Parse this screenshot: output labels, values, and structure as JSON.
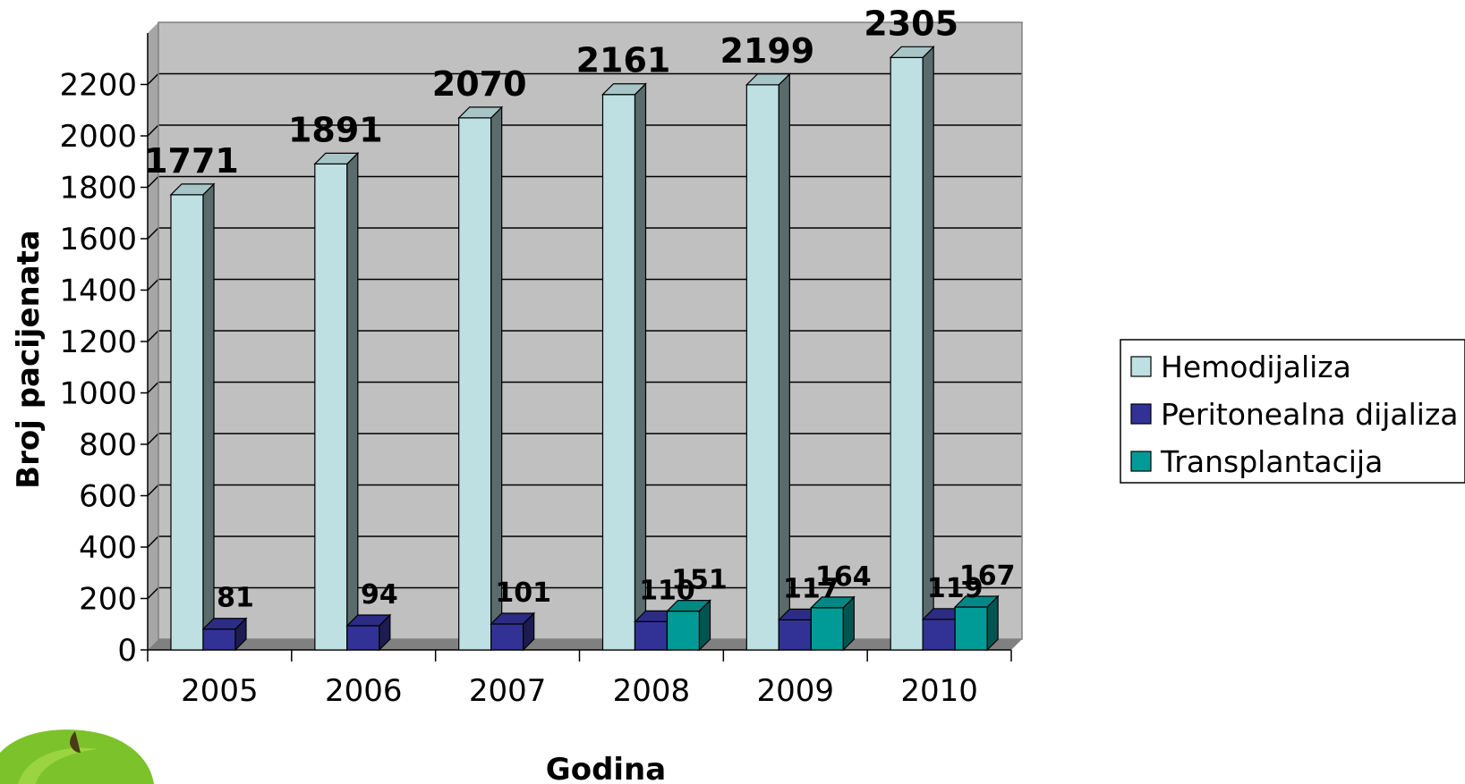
{
  "chart_data": {
    "type": "bar",
    "categories": [
      "2005",
      "2006",
      "2007",
      "2008",
      "2009",
      "2010"
    ],
    "series": [
      {
        "name": "Hemodijaliza",
        "values": [
          1771,
          1891,
          2070,
          2161,
          2199,
          2305
        ],
        "color": "#BEE0E2"
      },
      {
        "name": "Peritonealna dijaliza",
        "values": [
          81,
          94,
          101,
          110,
          117,
          119
        ],
        "color": "#323296"
      },
      {
        "name": "Transplantacija",
        "values": [
          null,
          null,
          null,
          151,
          164,
          167
        ],
        "color": "#009B96"
      }
    ],
    "data_labels": {
      "Hemodijaliza": [
        "1771",
        "1891",
        "2070",
        "2161",
        "2199",
        "2305"
      ],
      "Peritonealna dijaliza": [
        "81",
        "94",
        "101",
        "110",
        "117",
        "119"
      ],
      "Transplantacija": [
        "",
        "",
        "",
        "151",
        "164",
        "167"
      ]
    },
    "title": "",
    "xlabel": "Godina",
    "ylabel": "Broj pacijenata",
    "ylim": [
      0,
      2400
    ],
    "yticks": [
      0,
      200,
      400,
      600,
      800,
      1000,
      1200,
      1400,
      1600,
      1800,
      2000,
      2200
    ],
    "grid": true,
    "three_d": true,
    "legend_position": "right",
    "background_color": "#C0C0C0"
  }
}
